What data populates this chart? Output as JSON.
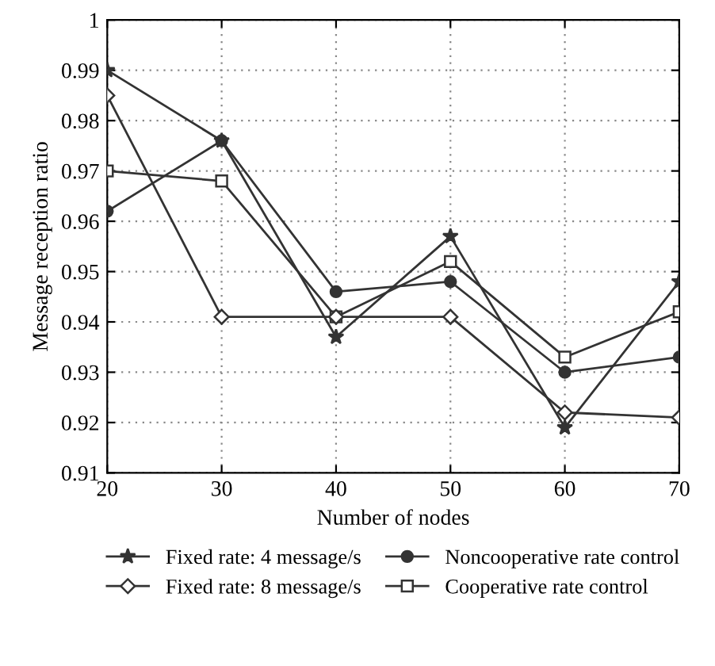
{
  "chart_data": {
    "type": "line",
    "xlabel": "Number of nodes",
    "ylabel": "Message reception ratio",
    "x": [
      20,
      30,
      40,
      50,
      60,
      70
    ],
    "series": [
      {
        "name": "Fixed rate: 4 message/s",
        "color": "#333333",
        "marker": "star",
        "values": [
          0.99,
          0.976,
          0.937,
          0.957,
          0.919,
          0.948
        ]
      },
      {
        "name": "Fixed rate: 8 message/s",
        "color": "#333333",
        "marker": "diamond",
        "values": [
          0.985,
          0.941,
          0.941,
          0.941,
          0.922,
          0.921
        ]
      },
      {
        "name": "Noncooperative rate control",
        "color": "#333333",
        "marker": "circle",
        "values": [
          0.962,
          0.976,
          0.946,
          0.948,
          0.93,
          0.933
        ]
      },
      {
        "name": "Cooperative rate control",
        "color": "#333333",
        "marker": "square",
        "values": [
          0.97,
          0.968,
          0.941,
          0.952,
          0.933,
          0.942
        ]
      }
    ],
    "xlim": [
      20,
      70
    ],
    "xticks": [
      20,
      30,
      40,
      50,
      60,
      70
    ],
    "ylim": [
      0.91,
      1
    ],
    "yticks": [
      0.91,
      0.92,
      0.93,
      0.94,
      0.95,
      0.96,
      0.97,
      0.98,
      0.99,
      1
    ],
    "grid": true,
    "legend": "bottom",
    "line_style": "solid"
  }
}
